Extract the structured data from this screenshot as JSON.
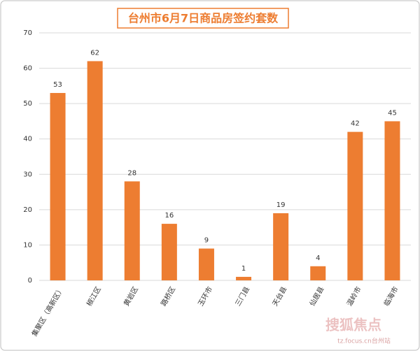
{
  "chart_data": {
    "type": "bar",
    "title": "台州市6月7日商品房签约套数",
    "categories": [
      "集聚区（高新区）",
      "椒江区",
      "黄岩区",
      "路桥区",
      "玉环市",
      "三门县",
      "天台县",
      "仙居县",
      "温岭市",
      "临海市"
    ],
    "values": [
      53,
      62,
      28,
      16,
      9,
      1,
      19,
      4,
      42,
      45
    ],
    "color": "#ed7d31",
    "ylim": [
      0,
      70
    ],
    "yticks": [
      0,
      10,
      20,
      30,
      40,
      50,
      60,
      70
    ],
    "grid": true,
    "watermark": "搜狐焦点",
    "watermark_sub": "tz.focus.cn台州站"
  }
}
